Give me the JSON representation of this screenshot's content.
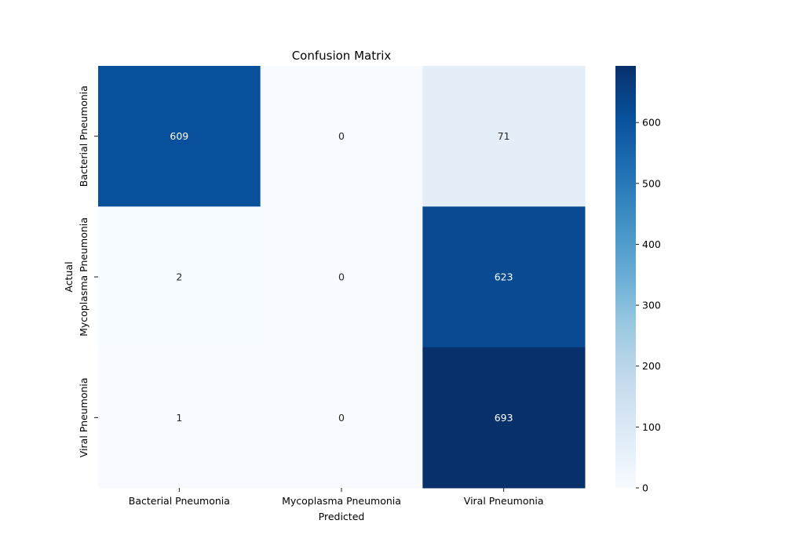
{
  "chart_data": {
    "type": "heatmap",
    "title": "Confusion Matrix",
    "xlabel": "Predicted",
    "ylabel": "Actual",
    "x_categories": [
      "Bacterial Pneumonia",
      "Mycoplasma Pneumonia",
      "Viral Pneumonia"
    ],
    "y_categories": [
      "Bacterial Pneumonia",
      "Mycoplasma Pneumonia",
      "Viral Pneumonia"
    ],
    "values": [
      [
        609,
        0,
        71
      ],
      [
        2,
        0,
        623
      ],
      [
        1,
        0,
        693
      ]
    ],
    "colormap": "Blues",
    "colorbar": {
      "min": 0,
      "max": 693,
      "ticks": [
        0,
        100,
        200,
        300,
        400,
        500,
        600
      ]
    },
    "grid": false,
    "legend": "colorbar-right"
  }
}
